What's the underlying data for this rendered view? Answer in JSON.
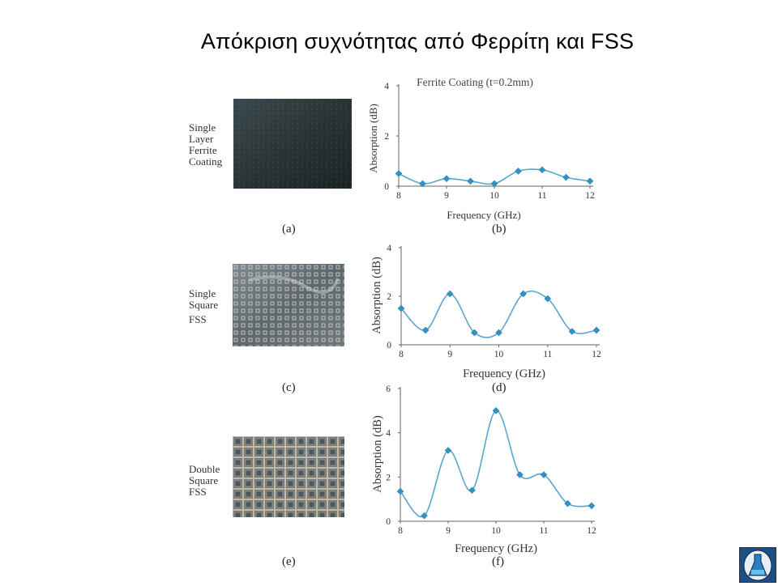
{
  "slide": {
    "title": "Απόκριση συχνότητας από Φερρίτη και FSS"
  },
  "rows": [
    {
      "label_lines": [
        "Single",
        "Layer",
        "Ferrite",
        "Coating"
      ],
      "photo_caption": "(a)",
      "chart_caption": "(b)"
    },
    {
      "label_lines": [
        "Single",
        "Square",
        "FSS"
      ],
      "photo_caption": "(c)",
      "chart_caption": "(d)"
    },
    {
      "label_lines": [
        "Double",
        "Square",
        "FSS"
      ],
      "photo_caption": "(e)",
      "chart_caption": "(f)"
    }
  ],
  "chart_data": [
    {
      "type": "line",
      "title": "Ferrite Coating (t=0.2mm)",
      "xlabel": "Frequency (GHz)",
      "ylabel": "Absorption (dB)",
      "x": [
        8,
        8.5,
        9,
        9.5,
        10,
        10.5,
        11,
        11.5,
        12
      ],
      "y": [
        0.5,
        0.1,
        0.3,
        0.2,
        0.1,
        0.6,
        0.65,
        0.35,
        0.2
      ],
      "xlim": [
        8,
        12
      ],
      "ylim": [
        0,
        4
      ],
      "xticks": [
        "8",
        "9",
        "10",
        "11",
        "12"
      ],
      "yticks": [
        "0",
        "2",
        "4"
      ],
      "line_color": "#5aa6d0",
      "marker_color": "#2f93c8"
    },
    {
      "type": "line",
      "title": "",
      "xlabel": "Frequency (GHz)",
      "ylabel": "Absorption (dB)",
      "x": [
        8,
        8.5,
        9,
        9.5,
        10,
        10.5,
        11,
        11.5,
        12
      ],
      "y": [
        1.5,
        0.6,
        2.1,
        0.5,
        0.5,
        2.1,
        1.9,
        0.55,
        0.6
      ],
      "xlim": [
        8,
        12
      ],
      "ylim": [
        0,
        4
      ],
      "xticks": [
        "8",
        "9",
        "10",
        "11",
        "12"
      ],
      "yticks": [
        "0",
        "2",
        "4"
      ],
      "line_color": "#5aa6d0",
      "marker_color": "#2f93c8"
    },
    {
      "type": "line",
      "title": "",
      "xlabel": "Frequency (GHz)",
      "ylabel": "Absorption (dB)",
      "x": [
        8,
        8.5,
        9,
        9.5,
        10,
        10.5,
        11,
        11.5,
        12
      ],
      "y": [
        1.35,
        0.25,
        3.2,
        1.4,
        5.0,
        2.1,
        2.1,
        0.8,
        0.7
      ],
      "xlim": [
        8,
        12
      ],
      "ylim": [
        0,
        6
      ],
      "xticks": [
        "8",
        "9",
        "10",
        "11",
        "12"
      ],
      "yticks": [
        "0",
        "2",
        "4",
        "6"
      ],
      "line_color": "#5aa6d0",
      "marker_color": "#2f93c8"
    }
  ]
}
